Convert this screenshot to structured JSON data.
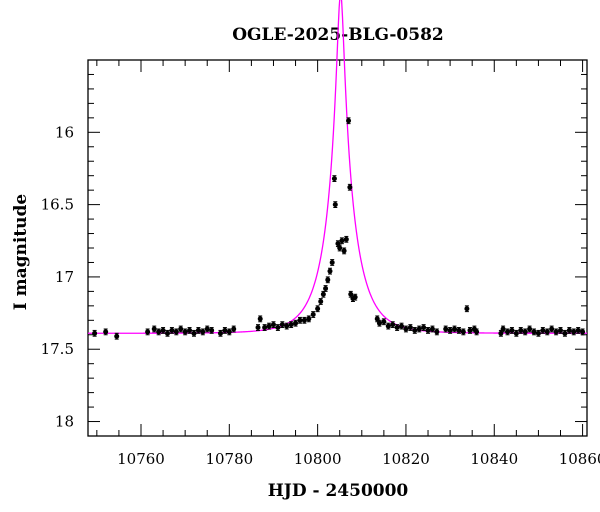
{
  "chart_data": {
    "type": "scatter",
    "title": "OGLE-2025-BLG-0582",
    "xlabel": "HJD - 2450000",
    "ylabel": "I magnitude",
    "xlim": [
      10748,
      10861
    ],
    "ylim": [
      18.1,
      15.5
    ],
    "y_inverted": true,
    "xticks": [
      10760,
      10780,
      10800,
      10820,
      10840,
      10860
    ],
    "yticks": [
      16,
      16.5,
      17,
      17.5,
      18
    ],
    "ytick_labels": [
      "16",
      "16.5",
      "17",
      "17.5",
      "18"
    ],
    "grid": false,
    "series": [
      {
        "kind": "points_with_errorbars",
        "color": "#000000",
        "points": [
          [
            10749.5,
            17.39,
            0.02
          ],
          [
            10752.0,
            17.38,
            0.02
          ],
          [
            10754.5,
            17.41,
            0.02
          ],
          [
            10761.5,
            17.38,
            0.02
          ],
          [
            10763.0,
            17.36,
            0.02
          ],
          [
            10764.0,
            17.38,
            0.02
          ],
          [
            10765.0,
            17.37,
            0.02
          ],
          [
            10766.0,
            17.39,
            0.02
          ],
          [
            10767.0,
            17.37,
            0.02
          ],
          [
            10768.0,
            17.38,
            0.02
          ],
          [
            10769.0,
            17.36,
            0.02
          ],
          [
            10770.0,
            17.38,
            0.02
          ],
          [
            10771.0,
            17.37,
            0.02
          ],
          [
            10772.0,
            17.39,
            0.02
          ],
          [
            10773.0,
            17.37,
            0.02
          ],
          [
            10774.0,
            17.38,
            0.02
          ],
          [
            10775.0,
            17.36,
            0.02
          ],
          [
            10776.0,
            17.37,
            0.02
          ],
          [
            10778.0,
            17.39,
            0.02
          ],
          [
            10779.0,
            17.37,
            0.02
          ],
          [
            10780.0,
            17.38,
            0.02
          ],
          [
            10781.0,
            17.36,
            0.02
          ],
          [
            10786.5,
            17.35,
            0.02
          ],
          [
            10787.0,
            17.29,
            0.02
          ],
          [
            10788.0,
            17.35,
            0.02
          ],
          [
            10789.0,
            17.34,
            0.02
          ],
          [
            10790.0,
            17.33,
            0.02
          ],
          [
            10791.0,
            17.35,
            0.02
          ],
          [
            10792.0,
            17.33,
            0.02
          ],
          [
            10793.0,
            17.34,
            0.02
          ],
          [
            10794.0,
            17.33,
            0.02
          ],
          [
            10795.0,
            17.32,
            0.02
          ],
          [
            10796.0,
            17.3,
            0.02
          ],
          [
            10797.0,
            17.3,
            0.02
          ],
          [
            10798.0,
            17.29,
            0.02
          ],
          [
            10799.0,
            17.26,
            0.02
          ],
          [
            10800.0,
            17.22,
            0.02
          ],
          [
            10800.7,
            17.17,
            0.02
          ],
          [
            10801.3,
            17.12,
            0.02
          ],
          [
            10801.8,
            17.08,
            0.02
          ],
          [
            10802.3,
            17.02,
            0.02
          ],
          [
            10802.8,
            16.96,
            0.02
          ],
          [
            10803.3,
            16.9,
            0.02
          ],
          [
            10803.8,
            16.32,
            0.02
          ],
          [
            10804.0,
            16.5,
            0.02
          ],
          [
            10804.6,
            16.77,
            0.02
          ],
          [
            10805.0,
            16.8,
            0.02
          ],
          [
            10805.5,
            16.75,
            0.02
          ],
          [
            10806.0,
            16.82,
            0.02
          ],
          [
            10806.5,
            16.74,
            0.02
          ],
          [
            10807.0,
            15.92,
            0.02
          ],
          [
            10807.3,
            16.38,
            0.02
          ],
          [
            10807.5,
            17.12,
            0.02
          ],
          [
            10808.0,
            17.15,
            0.02
          ],
          [
            10808.5,
            17.14,
            0.02
          ],
          [
            10813.5,
            17.29,
            0.02
          ],
          [
            10814.0,
            17.32,
            0.02
          ],
          [
            10815.0,
            17.31,
            0.02
          ],
          [
            10816.0,
            17.34,
            0.02
          ],
          [
            10817.0,
            17.33,
            0.02
          ],
          [
            10818.0,
            17.35,
            0.02
          ],
          [
            10819.0,
            17.34,
            0.02
          ],
          [
            10820.0,
            17.36,
            0.02
          ],
          [
            10821.0,
            17.35,
            0.02
          ],
          [
            10822.0,
            17.37,
            0.02
          ],
          [
            10823.0,
            17.36,
            0.02
          ],
          [
            10824.0,
            17.35,
            0.02
          ],
          [
            10825.0,
            17.37,
            0.02
          ],
          [
            10826.0,
            17.36,
            0.02
          ],
          [
            10827.0,
            17.38,
            0.02
          ],
          [
            10829.0,
            17.36,
            0.02
          ],
          [
            10830.0,
            17.37,
            0.02
          ],
          [
            10831.0,
            17.36,
            0.02
          ],
          [
            10832.0,
            17.37,
            0.02
          ],
          [
            10833.0,
            17.38,
            0.02
          ],
          [
            10833.8,
            17.22,
            0.02
          ],
          [
            10834.5,
            17.37,
            0.02
          ],
          [
            10835.5,
            17.36,
            0.02
          ],
          [
            10836.0,
            17.38,
            0.02
          ],
          [
            10841.5,
            17.39,
            0.02
          ],
          [
            10842.0,
            17.36,
            0.02
          ],
          [
            10843.0,
            17.38,
            0.02
          ],
          [
            10844.0,
            17.37,
            0.02
          ],
          [
            10845.0,
            17.39,
            0.02
          ],
          [
            10846.0,
            17.37,
            0.02
          ],
          [
            10847.0,
            17.38,
            0.02
          ],
          [
            10848.0,
            17.36,
            0.02
          ],
          [
            10849.0,
            17.38,
            0.02
          ],
          [
            10850.0,
            17.39,
            0.02
          ],
          [
            10851.0,
            17.37,
            0.02
          ],
          [
            10852.0,
            17.38,
            0.02
          ],
          [
            10853.0,
            17.36,
            0.02
          ],
          [
            10854.0,
            17.38,
            0.02
          ],
          [
            10855.0,
            17.37,
            0.02
          ],
          [
            10856.0,
            17.39,
            0.02
          ],
          [
            10857.0,
            17.37,
            0.02
          ],
          [
            10858.0,
            17.38,
            0.02
          ],
          [
            10859.0,
            17.37,
            0.02
          ],
          [
            10860.0,
            17.38,
            0.02
          ]
        ]
      },
      {
        "kind": "model_curve",
        "color": "#ff00ff",
        "baseline_mag": 17.39,
        "t0": 10805.2,
        "u0": 0.115,
        "tE": 6.2
      }
    ]
  }
}
